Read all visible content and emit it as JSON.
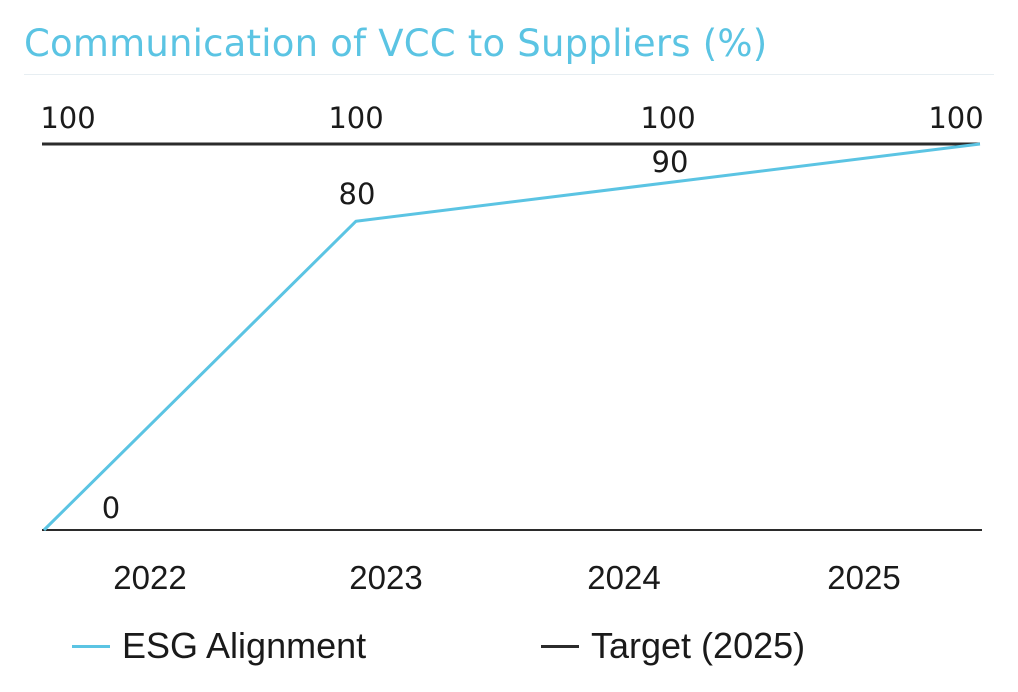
{
  "colors": {
    "esg": "#5bc4e3",
    "target": "#2b2b2b",
    "title": "#5bc4e3",
    "text": "#1a1a1a"
  },
  "chart_data": {
    "type": "line",
    "title": "Communication of VCC to Suppliers (%)",
    "categories": [
      "2022",
      "2023",
      "2024",
      "2025"
    ],
    "xlabel": "",
    "ylabel": "",
    "ylim": [
      0,
      100
    ],
    "grid": false,
    "legend_position": "bottom",
    "series": [
      {
        "name": "ESG Alignment",
        "values": [
          0,
          80,
          90,
          100
        ],
        "color": "#5bc4e3"
      },
      {
        "name": "Target (2025)",
        "values": [
          100,
          100,
          100,
          100
        ],
        "color": "#2b2b2b"
      }
    ]
  }
}
